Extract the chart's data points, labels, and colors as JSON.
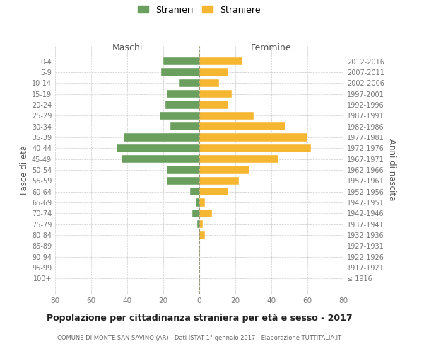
{
  "age_groups": [
    "0-4",
    "5-9",
    "10-14",
    "15-19",
    "20-24",
    "25-29",
    "30-34",
    "35-39",
    "40-44",
    "45-49",
    "50-54",
    "55-59",
    "60-64",
    "65-69",
    "70-74",
    "75-79",
    "80-84",
    "85-89",
    "90-94",
    "95-99",
    "100+"
  ],
  "birth_years": [
    "2012-2016",
    "2007-2011",
    "2002-2006",
    "1997-2001",
    "1992-1996",
    "1987-1991",
    "1982-1986",
    "1977-1981",
    "1972-1976",
    "1967-1971",
    "1962-1966",
    "1957-1961",
    "1952-1956",
    "1947-1951",
    "1942-1946",
    "1937-1941",
    "1932-1936",
    "1927-1931",
    "1922-1926",
    "1917-1921",
    "≤ 1916"
  ],
  "maschi": [
    20,
    21,
    11,
    18,
    19,
    22,
    16,
    42,
    46,
    43,
    18,
    18,
    5,
    2,
    4,
    1,
    0,
    0,
    0,
    0,
    0
  ],
  "femmine": [
    24,
    16,
    11,
    18,
    16,
    30,
    48,
    60,
    62,
    44,
    28,
    22,
    16,
    3,
    7,
    2,
    3,
    0,
    0,
    0,
    0
  ],
  "color_maschi": "#6a9f5e",
  "color_femmine": "#f5b731",
  "title": "Popolazione per cittadinanza straniera per età e sesso - 2017",
  "subtitle": "COMUNE DI MONTE SAN SAVINO (AR) - Dati ISTAT 1° gennaio 2017 - Elaborazione TUTTITALIA.IT",
  "xlabel_left": "Maschi",
  "xlabel_right": "Femmine",
  "ylabel_left": "Fasce di età",
  "ylabel_right": "Anni di nascita",
  "legend_maschi": "Stranieri",
  "legend_femmine": "Straniere",
  "xlim": 80,
  "bg_color": "#ffffff",
  "grid_color": "#cccccc"
}
